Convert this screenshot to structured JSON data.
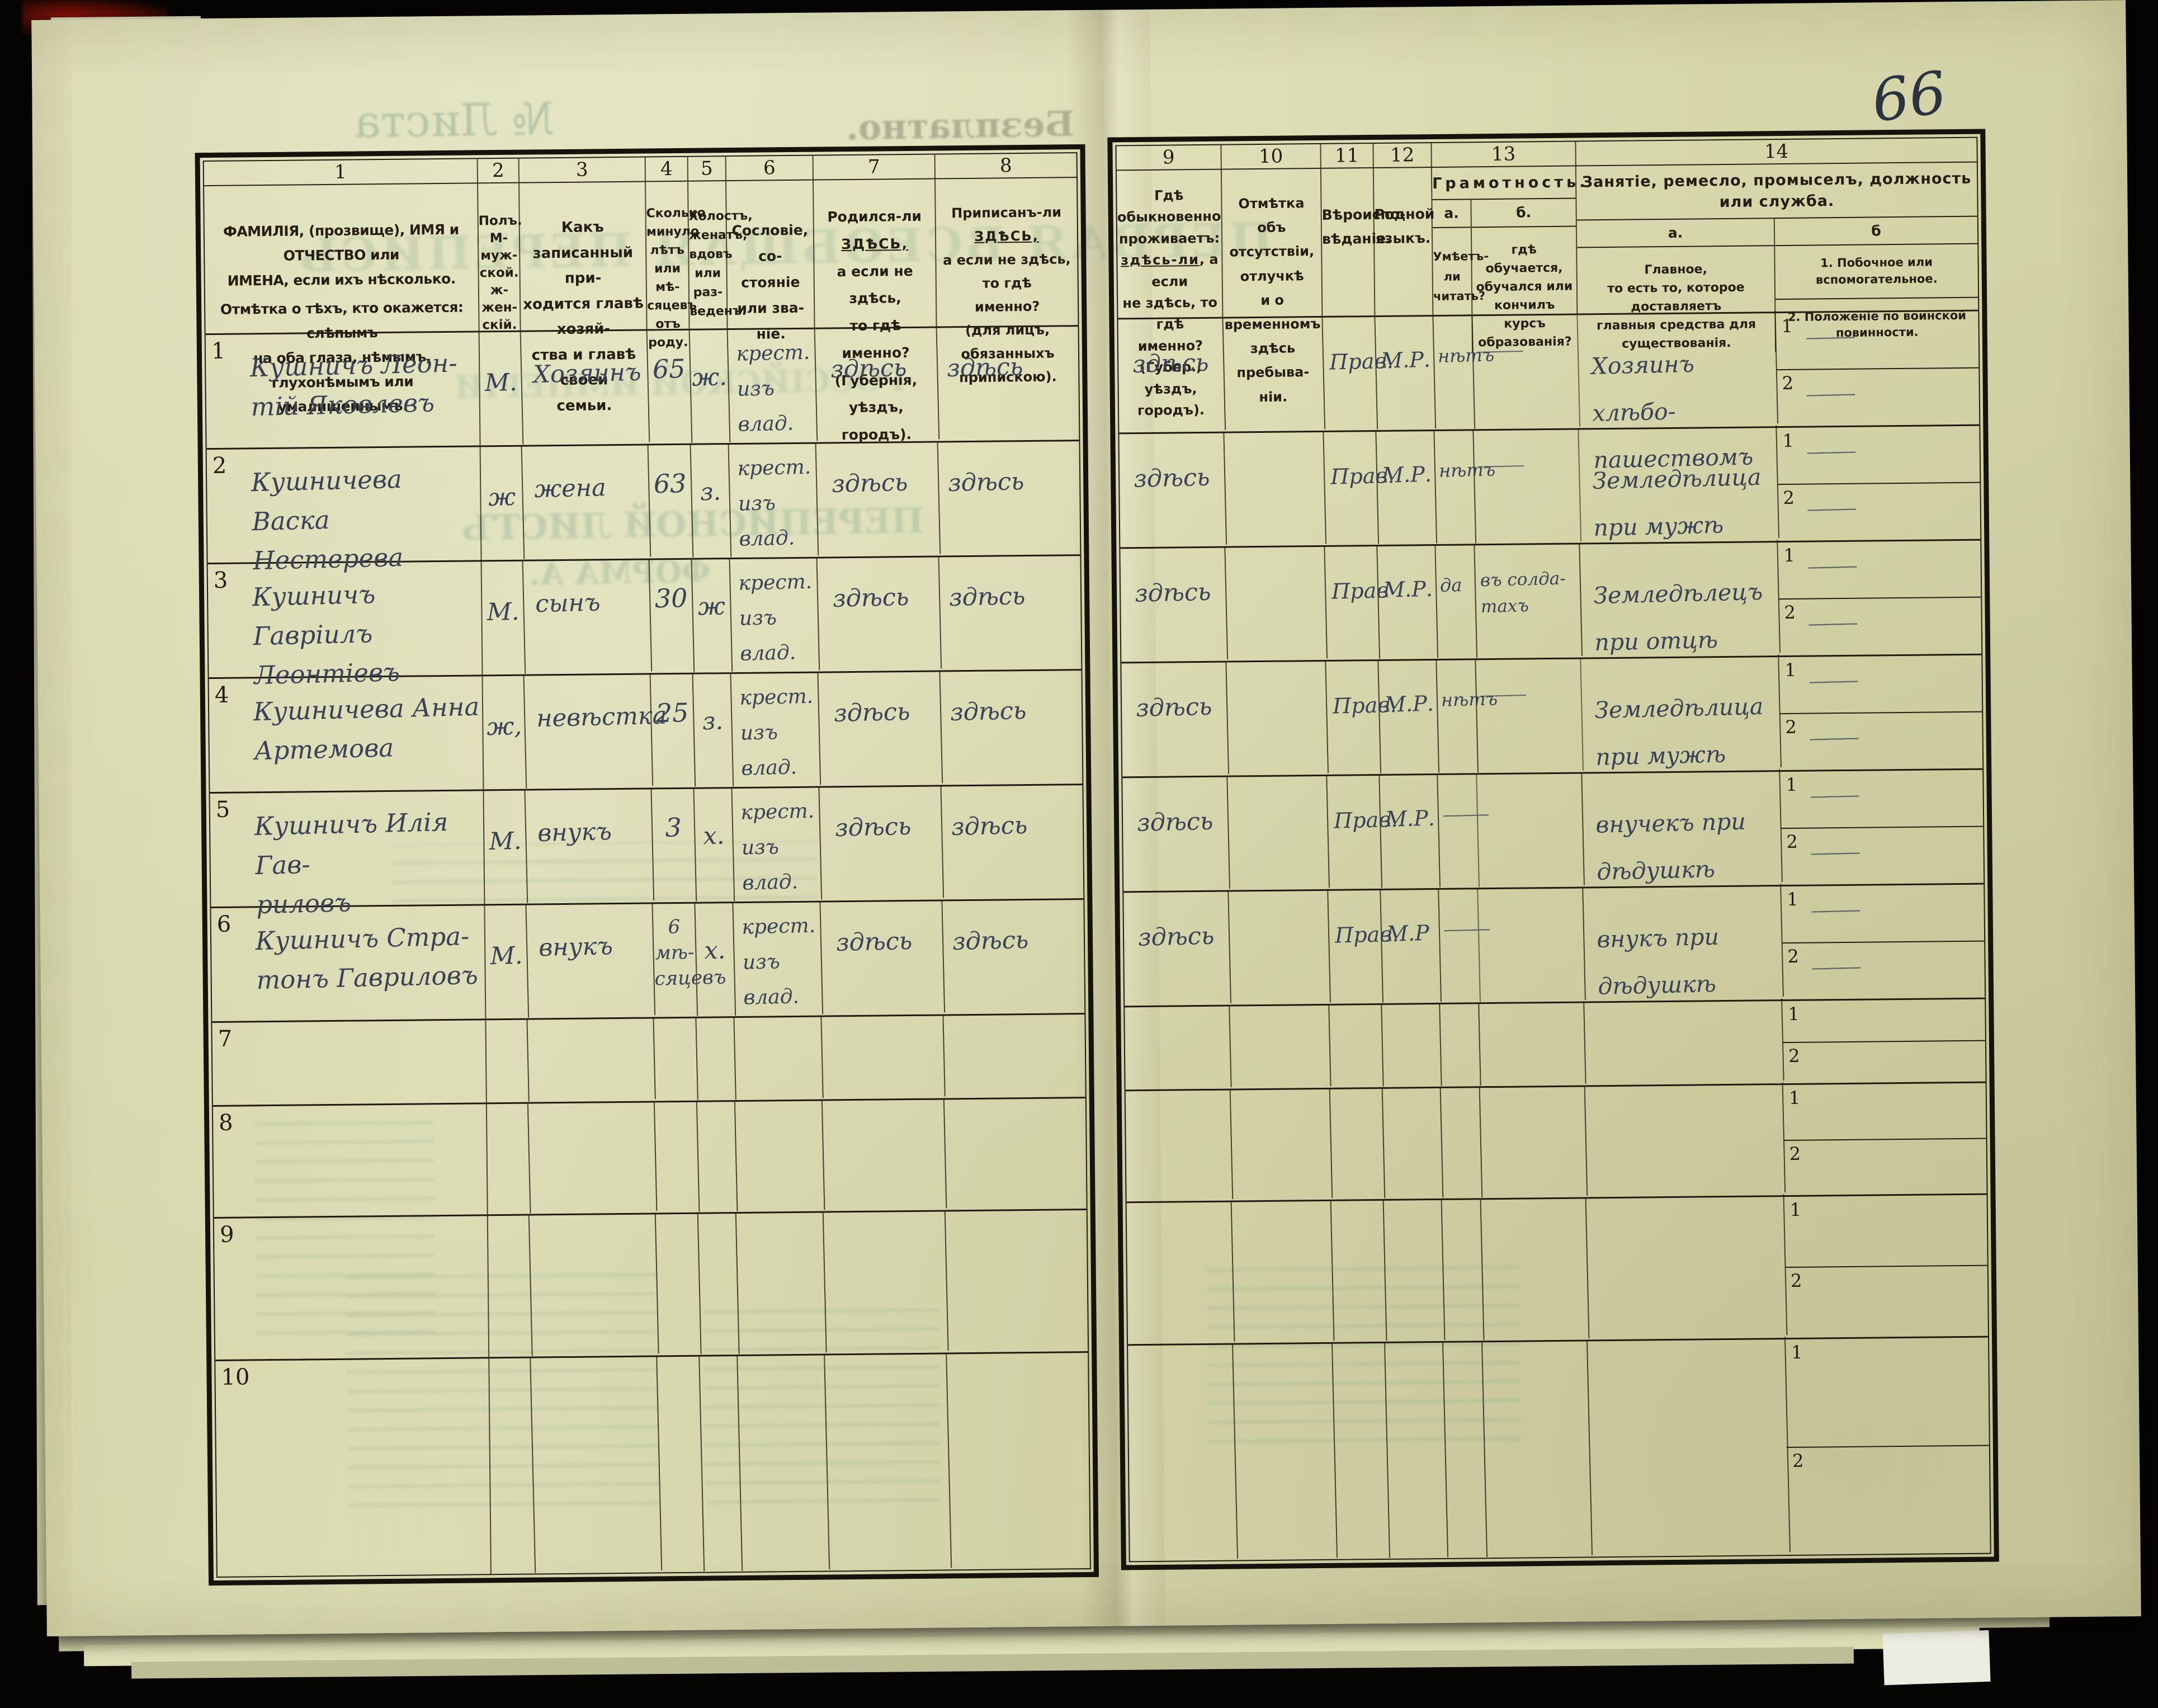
{
  "page": {
    "page_number": "66",
    "ghosts": {
      "free_of_charge": "Безплатно.",
      "sheet_no": "№ Листа",
      "census_title": "ПЕРВАЯ ВСЕОБЩАЯ ПЕРЕПИСЬ",
      "empire": "РОССІЙСКОЙ ИМПЕРІИ",
      "list_form": "ПЕРЕПИСНОЙ ЛИСТЪ",
      "forma": "ФОРМА А."
    }
  },
  "table": {
    "column_numbers": [
      "1",
      "2",
      "3",
      "4",
      "5",
      "6",
      "7",
      "8",
      "9",
      "10",
      "11",
      "12",
      "13",
      "14"
    ],
    "side_labels": [
      "1",
      "2"
    ],
    "headers": {
      "col1a": "ФАМИЛІЯ, (прозвище), ИМЯ и ОТЧЕСТВО или\nИМЕНА, если ихъ нѣсколько.",
      "col1b": "Отмѣтка о тѣхъ, кто окажется: слѣпымъ\nна оба глаза, нѣмымъ, глухонѣмымъ или\nумалишеннымъ.",
      "col2": "Полъ.\nМ-муж-\nской.\nж-жен-\nскій.",
      "col3": "Какъ записанный при-\nходится главѣ хозяй-\nства и главѣ своей\nсемьи.",
      "col4": "Сколько\nминуло\nлѣтъ\nили мѣ-\nсяцевъ\nотъ роду.",
      "col5": "Холостъ,\nженатъ,\nвдовъ\nили раз-\nведенъ.",
      "col6": "Сословіе, со-\nстояніе или зва-\nніе.",
      "col7": "Родился-ли ЗДѢСЬ,\nа если не здѣсь,\nто гдѣ именно?\n(Губернія, уѣздъ, городъ).",
      "col8": "Приписанъ-ли ЗДѢСЬ,\nа если не здѣсь, то гдѣ\nименно?\n(для лицъ, обязанныхъ\nприпискою).",
      "col9": "Гдѣ обыкновенно\nпроживаетъ:\nздѣсь-ли, а если\nне здѣсь, то гдѣ\nименно?\n(Губер., уѣздъ, городъ).",
      "col10": "Отмѣтка объ\nотсутствіи, отлучкѣ\nи о временномъ\nздѣсь пребыва-\nніи.",
      "col11": "Вѣроиспо-\nвѣданіе.",
      "col12": "Родной\nязыкъ.",
      "col13_title": "Грамотность.",
      "col13a_label": "а.",
      "col13b_label": "б.",
      "col13a": "Умѣетъ-\nли\nчитать?",
      "col13b": "гдѣ обучается,\nобучался или\nкончилъ курсъ\nобразованія?",
      "col14_title": "Занятіе, ремесло, промыселъ, должность или служба.",
      "col14a_label": "а.",
      "col14b_label": "б",
      "col14a": "Главное,\nто есть то, которое доставляетъ\nглавныя средства для существованія.",
      "col14b_1": "1.  Побочное или вспомогательное.",
      "col14b_2": "2.  Положеніе по воинской повинности."
    },
    "rows": [
      {
        "num": "1",
        "name": "Кушничъ Леон-\nтій Яковлевъ",
        "sex": "М.",
        "relation": "Хозяинъ",
        "age": "65",
        "marital": "ж.",
        "estate": "крест.\nизъ\nвлад.",
        "born": "здѣсь",
        "registered": "здѣсь",
        "resides": "здѣсь",
        "absence": "",
        "religion": "Прав.",
        "language": "М.Р.",
        "reads": "нѣтъ",
        "education": "———",
        "occupation": "Хозяинъ хлѣбо-\nпашествомъ",
        "side1": "———",
        "side2": "———"
      },
      {
        "num": "2",
        "name": "Кушничева Васка\nНестерева",
        "sex": "ж",
        "relation": "жена",
        "age": "63",
        "marital": "з.",
        "estate": "крест.\nизъ\nвлад.",
        "born": "здѣсь",
        "registered": "здѣсь",
        "resides": "здѣсь",
        "absence": "",
        "religion": "Прав.",
        "language": "М.Р.",
        "reads": "нѣтъ",
        "education": "———",
        "occupation": "Земледѣлица\nпри мужѣ",
        "side1": "———",
        "side2": "———"
      },
      {
        "num": "3",
        "name": "Кушничъ Гавріилъ\nЛеонтіевъ",
        "sex": "М.",
        "relation": "сынъ",
        "age": "30",
        "marital": "ж",
        "estate": "крест.\nизъ\nвлад.",
        "born": "здѣсь",
        "registered": "здѣсь",
        "resides": "здѣсь",
        "absence": "",
        "religion": "Прав",
        "language": "М.Р.",
        "reads": "да",
        "education": "въ солда-\nтахъ",
        "occupation": "Земледѣлецъ\nпри отцѣ",
        "side1": "———",
        "side2": "———"
      },
      {
        "num": "4",
        "name": "Кушничева Анна\nАртемова",
        "sex": "ж,",
        "relation": "невѣстка",
        "age": "25",
        "marital": "з.",
        "estate": "крест.\nизъ\nвлад.",
        "born": "здѣсь",
        "registered": "здѣсь",
        "resides": "здѣсь",
        "absence": "",
        "religion": "Прав.",
        "language": "М.Р.",
        "reads": "нѣтъ",
        "education": "———",
        "occupation": "Земледѣлица\nпри мужѣ",
        "side1": "———",
        "side2": "———"
      },
      {
        "num": "5",
        "name": "Кушничъ Илія Гав-\nриловъ",
        "sex": "М.",
        "relation": "внукъ",
        "age": "3",
        "marital": "х.",
        "estate": "крест.\nизъ\nвлад.",
        "born": "здѣсь",
        "registered": "здѣсь",
        "resides": "здѣсь",
        "absence": "",
        "religion": "Прав.",
        "language": "М.Р.",
        "reads": "———",
        "education": "",
        "occupation": "внучекъ при\nдѣдушкѣ",
        "side1": "———",
        "side2": "———"
      },
      {
        "num": "6",
        "name": "Кушничъ Стра-\nтонъ Гавриловъ",
        "sex": "М.",
        "relation": "внукъ",
        "age": "6\nмѣ-\nсяцевъ",
        "marital": "х.",
        "estate": "крест.\nизъ\nвлад.",
        "born": "здѣсь",
        "registered": "здѣсь",
        "resides": "здѣсь",
        "absence": "",
        "religion": "Прав.",
        "language": "М.Р",
        "reads": "———",
        "education": "",
        "occupation": "внукъ при\nдѣдушкѣ",
        "side1": "———",
        "side2": "———"
      },
      {
        "num": "7",
        "name": "",
        "sex": "",
        "relation": "",
        "age": "",
        "marital": "",
        "estate": "",
        "born": "",
        "registered": "",
        "resides": "",
        "absence": "",
        "religion": "",
        "language": "",
        "reads": "",
        "education": "",
        "occupation": "",
        "side1": "",
        "side2": ""
      },
      {
        "num": "8",
        "name": "",
        "sex": "",
        "relation": "",
        "age": "",
        "marital": "",
        "estate": "",
        "born": "",
        "registered": "",
        "resides": "",
        "absence": "",
        "religion": "",
        "language": "",
        "reads": "",
        "education": "",
        "occupation": "",
        "side1": "",
        "side2": ""
      },
      {
        "num": "9",
        "name": "",
        "sex": "",
        "relation": "",
        "age": "",
        "marital": "",
        "estate": "",
        "born": "",
        "registered": "",
        "resides": "",
        "absence": "",
        "religion": "",
        "language": "",
        "reads": "",
        "education": "",
        "occupation": "",
        "side1": "",
        "side2": ""
      },
      {
        "num": "10",
        "name": "",
        "sex": "",
        "relation": "",
        "age": "",
        "marital": "",
        "estate": "",
        "born": "",
        "registered": "",
        "resides": "",
        "absence": "",
        "religion": "",
        "language": "",
        "reads": "",
        "education": "",
        "occupation": "",
        "side1": "",
        "side2": ""
      }
    ]
  }
}
